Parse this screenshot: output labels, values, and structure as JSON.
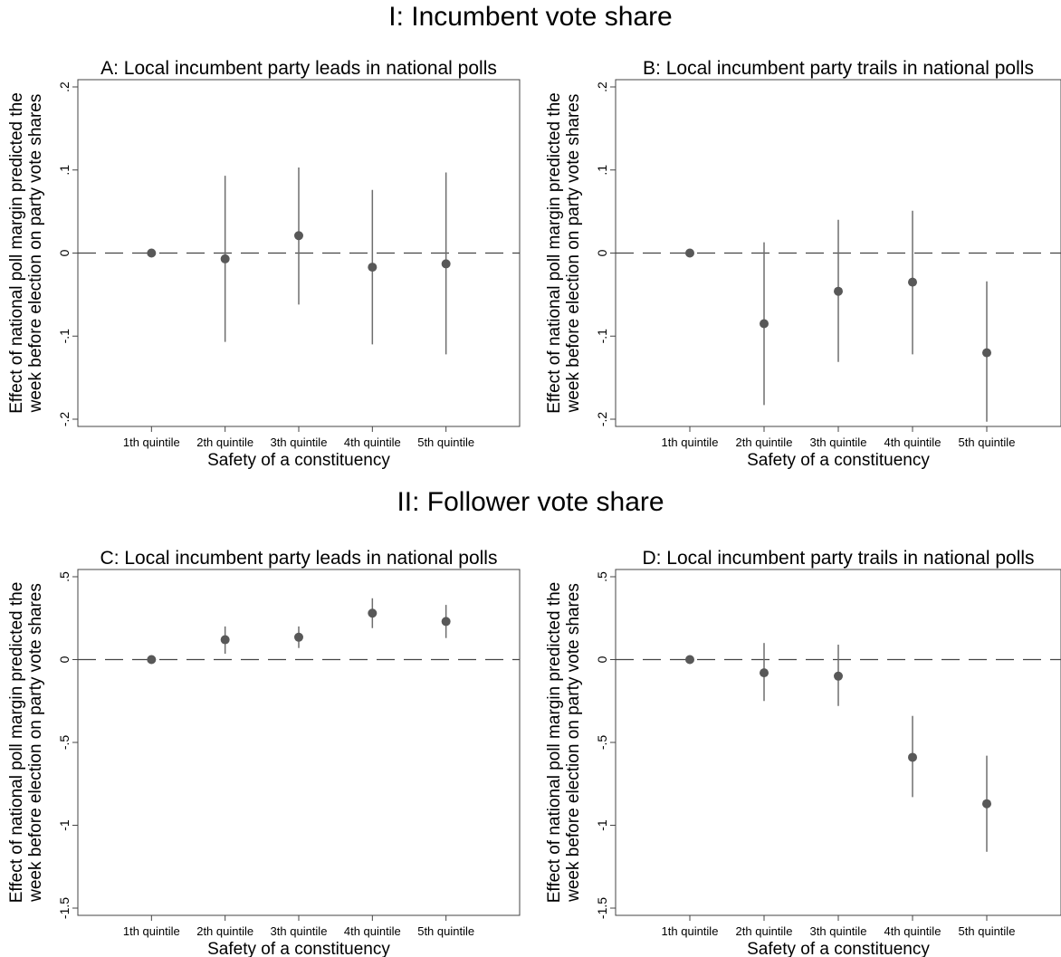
{
  "sections": [
    {
      "title": "I: Incumbent vote share"
    },
    {
      "title": "II: Follower vote share"
    }
  ],
  "chart_data": [
    {
      "type": "scatter",
      "title": "A: Local incumbent party leads in national polls",
      "xlabel": "Safety of a constituency",
      "ylabel_lines": [
        "Effect of national poll margin predicted the",
        "week before election on party vote shares"
      ],
      "categories": [
        "1th quintile",
        "2th quintile",
        "3th quintile",
        "4th quintile",
        "5th quintile"
      ],
      "ylim": [
        -0.2,
        0.2
      ],
      "yticks": [
        {
          "value": 0.2,
          "label": ".2"
        },
        {
          "value": 0.1,
          "label": ".1"
        },
        {
          "value": 0,
          "label": "0"
        },
        {
          "value": -0.1,
          "label": "-.1"
        },
        {
          "value": -0.2,
          "label": "-.2"
        }
      ],
      "reference_line": 0,
      "estimates": [
        0,
        -0.007,
        0.021,
        -0.017,
        -0.013
      ],
      "ci_low": [
        null,
        -0.107,
        -0.062,
        -0.11,
        -0.122
      ],
      "ci_high": [
        null,
        0.093,
        0.103,
        0.076,
        0.097
      ]
    },
    {
      "type": "scatter",
      "title": "B: Local incumbent party trails in national polls",
      "xlabel": "Safety of a constituency",
      "ylabel_lines": [
        "Effect of national poll margin predicted the",
        "week before election on party vote shares"
      ],
      "categories": [
        "1th quintile",
        "2th quintile",
        "3th quintile",
        "4th quintile",
        "5th quintile"
      ],
      "ylim": [
        -0.2,
        0.2
      ],
      "yticks": [
        {
          "value": 0.2,
          "label": ".2"
        },
        {
          "value": 0.1,
          "label": ".1"
        },
        {
          "value": 0,
          "label": "0"
        },
        {
          "value": -0.1,
          "label": "-.1"
        },
        {
          "value": -0.2,
          "label": "-.2"
        }
      ],
      "reference_line": 0,
      "estimates": [
        0,
        -0.085,
        -0.046,
        -0.035,
        -0.12
      ],
      "ci_low": [
        null,
        -0.183,
        -0.131,
        -0.122,
        -0.203
      ],
      "ci_high": [
        null,
        0.013,
        0.04,
        0.051,
        -0.034
      ]
    },
    {
      "type": "scatter",
      "title": "C: Local incumbent party leads in national polls",
      "xlabel": "Safety of a constituency",
      "ylabel_lines": [
        "Effect of national poll margin predicted the",
        "week before election on party vote shares"
      ],
      "categories": [
        "1th quintile",
        "2th quintile",
        "3th quintile",
        "4th quintile",
        "5th quintile"
      ],
      "ylim": [
        -1.5,
        0.5
      ],
      "yticks": [
        {
          "value": 0.5,
          "label": ".5"
        },
        {
          "value": 0,
          "label": "0"
        },
        {
          "value": -0.5,
          "label": "-.5"
        },
        {
          "value": -1,
          "label": "-1"
        },
        {
          "value": -1.5,
          "label": "-1.5"
        }
      ],
      "reference_line": 0,
      "estimates": [
        0,
        0.12,
        0.135,
        0.28,
        0.23
      ],
      "ci_low": [
        null,
        0.035,
        0.07,
        0.19,
        0.13
      ],
      "ci_high": [
        null,
        0.2,
        0.2,
        0.37,
        0.33
      ]
    },
    {
      "type": "scatter",
      "title": "D: Local incumbent party trails in national polls",
      "xlabel": "Safety of a constituency",
      "ylabel_lines": [
        "Effect of national poll margin predicted the",
        "week before election on party vote shares"
      ],
      "categories": [
        "1th quintile",
        "2th quintile",
        "3th quintile",
        "4th quintile",
        "5th quintile"
      ],
      "ylim": [
        -1.5,
        0.5
      ],
      "yticks": [
        {
          "value": 0.5,
          "label": ".5"
        },
        {
          "value": 0,
          "label": "0"
        },
        {
          "value": -0.5,
          "label": "-.5"
        },
        {
          "value": -1,
          "label": "-1"
        },
        {
          "value": -1.5,
          "label": "-1.5"
        }
      ],
      "reference_line": 0,
      "estimates": [
        0,
        -0.08,
        -0.1,
        -0.59,
        -0.87
      ],
      "ci_low": [
        null,
        -0.25,
        -0.28,
        -0.83,
        -1.16
      ],
      "ci_high": [
        null,
        0.1,
        0.09,
        -0.34,
        -0.58
      ]
    }
  ]
}
